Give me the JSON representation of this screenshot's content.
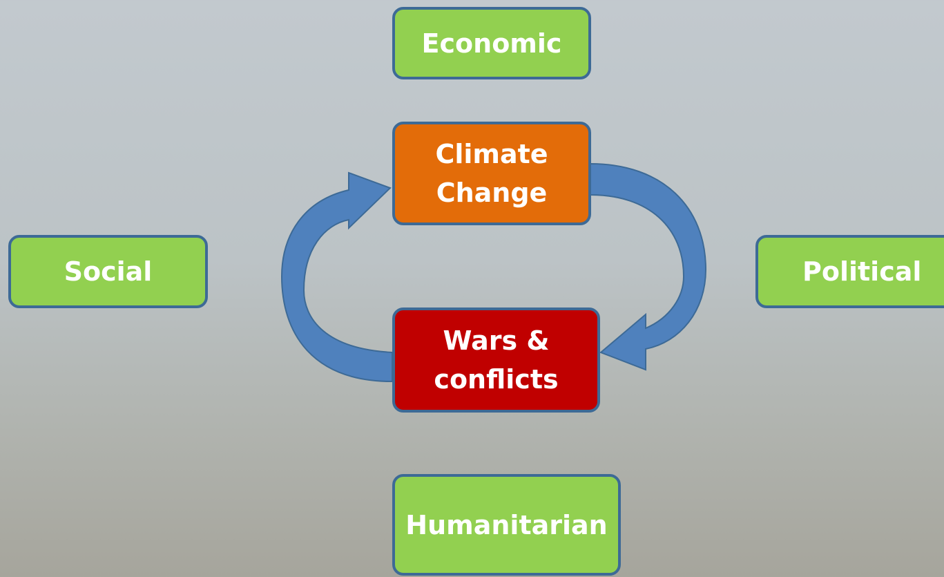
{
  "nodes": [
    {
      "label": "Economic"
    },
    {
      "label": "Climate Change"
    },
    {
      "label": "Social"
    },
    {
      "label": "Political"
    },
    {
      "label": "Wars & conflicts"
    },
    {
      "label": "Humanitarian"
    }
  ]
}
